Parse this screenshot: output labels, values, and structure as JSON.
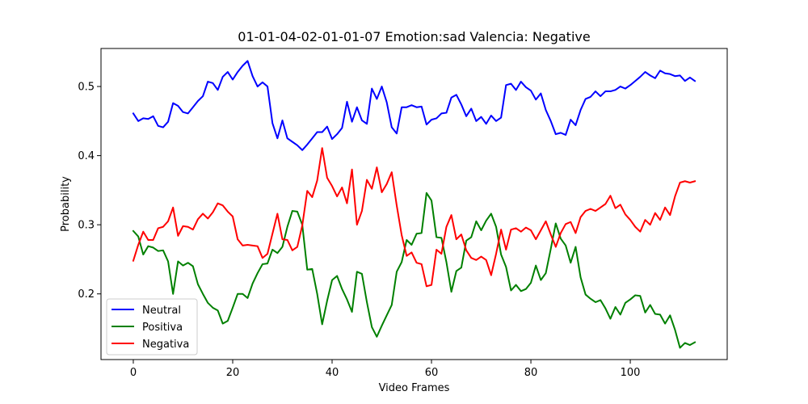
{
  "chart_data": {
    "type": "line",
    "title": "01-01-04-02-01-01-07 Emotion:sad Valencia: Negative",
    "xlabel": "Video Frames",
    "ylabel": "Probability",
    "xlim": [
      -6.5,
      119.5
    ],
    "ylim": [
      0.105,
      0.555
    ],
    "xticks": [
      0,
      20,
      40,
      60,
      80,
      100
    ],
    "yticks": [
      0.2,
      0.3,
      0.4,
      0.5
    ],
    "xtick_labels": [
      "0",
      "20",
      "40",
      "60",
      "80",
      "100"
    ],
    "ytick_labels": [
      "0.2",
      "0.3",
      "0.4",
      "0.5"
    ],
    "grid": false,
    "legend_position": "lower-left",
    "series": [
      {
        "name": "Neutral",
        "color": "#0000ff",
        "values": [
          0.461,
          0.45,
          0.454,
          0.453,
          0.457,
          0.443,
          0.441,
          0.449,
          0.476,
          0.472,
          0.463,
          0.461,
          0.47,
          0.479,
          0.486,
          0.507,
          0.505,
          0.495,
          0.514,
          0.521,
          0.51,
          0.521,
          0.53,
          0.537,
          0.515,
          0.5,
          0.506,
          0.5,
          0.447,
          0.425,
          0.451,
          0.425,
          0.42,
          0.415,
          0.408,
          0.416,
          0.425,
          0.434,
          0.434,
          0.442,
          0.424,
          0.431,
          0.44,
          0.478,
          0.449,
          0.47,
          0.451,
          0.446,
          0.497,
          0.482,
          0.5,
          0.477,
          0.441,
          0.432,
          0.47,
          0.47,
          0.473,
          0.47,
          0.471,
          0.445,
          0.452,
          0.454,
          0.461,
          0.462,
          0.484,
          0.488,
          0.474,
          0.457,
          0.468,
          0.45,
          0.456,
          0.446,
          0.458,
          0.45,
          0.455,
          0.502,
          0.504,
          0.495,
          0.507,
          0.499,
          0.494,
          0.481,
          0.49,
          0.466,
          0.45,
          0.431,
          0.433,
          0.43,
          0.452,
          0.444,
          0.466,
          0.482,
          0.485,
          0.493,
          0.486,
          0.493,
          0.493,
          0.495,
          0.5,
          0.497,
          0.502,
          0.508,
          0.514,
          0.521,
          0.516,
          0.512,
          0.523,
          0.519,
          0.518,
          0.515,
          0.516,
          0.508,
          0.513,
          0.508
        ]
      },
      {
        "name": "Positiva",
        "color": "#008000",
        "values": [
          0.291,
          0.283,
          0.257,
          0.269,
          0.267,
          0.262,
          0.263,
          0.247,
          0.2,
          0.247,
          0.241,
          0.245,
          0.24,
          0.214,
          0.2,
          0.187,
          0.18,
          0.176,
          0.157,
          0.161,
          0.18,
          0.2,
          0.2,
          0.194,
          0.215,
          0.23,
          0.243,
          0.244,
          0.264,
          0.259,
          0.268,
          0.297,
          0.32,
          0.319,
          0.3,
          0.235,
          0.236,
          0.2,
          0.156,
          0.19,
          0.22,
          0.226,
          0.207,
          0.192,
          0.174,
          0.232,
          0.229,
          0.188,
          0.152,
          0.138,
          0.154,
          0.169,
          0.184,
          0.232,
          0.246,
          0.278,
          0.271,
          0.287,
          0.288,
          0.346,
          0.335,
          0.282,
          0.281,
          0.246,
          0.203,
          0.233,
          0.238,
          0.277,
          0.282,
          0.305,
          0.292,
          0.306,
          0.316,
          0.297,
          0.257,
          0.239,
          0.205,
          0.213,
          0.204,
          0.207,
          0.216,
          0.241,
          0.22,
          0.23,
          0.265,
          0.302,
          0.28,
          0.27,
          0.245,
          0.268,
          0.224,
          0.199,
          0.193,
          0.188,
          0.191,
          0.179,
          0.164,
          0.181,
          0.17,
          0.187,
          0.192,
          0.198,
          0.197,
          0.173,
          0.184,
          0.171,
          0.17,
          0.157,
          0.169,
          0.148,
          0.122,
          0.129,
          0.126,
          0.13
        ]
      },
      {
        "name": "Negativa",
        "color": "#ff0000",
        "values": [
          0.248,
          0.271,
          0.29,
          0.278,
          0.278,
          0.295,
          0.297,
          0.305,
          0.325,
          0.284,
          0.298,
          0.297,
          0.293,
          0.308,
          0.316,
          0.309,
          0.318,
          0.331,
          0.328,
          0.319,
          0.312,
          0.279,
          0.27,
          0.271,
          0.27,
          0.269,
          0.252,
          0.258,
          0.287,
          0.316,
          0.279,
          0.278,
          0.263,
          0.268,
          0.299,
          0.349,
          0.34,
          0.364,
          0.411,
          0.368,
          0.356,
          0.341,
          0.354,
          0.331,
          0.38,
          0.3,
          0.32,
          0.365,
          0.352,
          0.383,
          0.347,
          0.359,
          0.376,
          0.328,
          0.285,
          0.255,
          0.26,
          0.245,
          0.243,
          0.211,
          0.213,
          0.264,
          0.258,
          0.297,
          0.314,
          0.279,
          0.286,
          0.263,
          0.252,
          0.249,
          0.254,
          0.249,
          0.227,
          0.258,
          0.293,
          0.264,
          0.293,
          0.295,
          0.29,
          0.296,
          0.292,
          0.279,
          0.292,
          0.305,
          0.286,
          0.268,
          0.288,
          0.301,
          0.304,
          0.288,
          0.311,
          0.32,
          0.323,
          0.32,
          0.325,
          0.33,
          0.342,
          0.324,
          0.329,
          0.315,
          0.307,
          0.297,
          0.29,
          0.307,
          0.3,
          0.317,
          0.307,
          0.325,
          0.314,
          0.341,
          0.361,
          0.363,
          0.361,
          0.363
        ]
      }
    ]
  }
}
